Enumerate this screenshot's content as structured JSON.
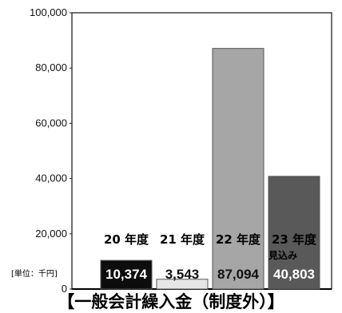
{
  "chart_data": {
    "type": "bar",
    "title": "【一般会計繰入金（制度外）】",
    "unit_note": "[単位：千円]",
    "ylim": [
      0,
      100000
    ],
    "y_ticks": [
      "0",
      "20,000",
      "40,000",
      "60,000",
      "80,000",
      "100,000"
    ],
    "categories": [
      {
        "label": "20 年度",
        "value": 10374,
        "value_label": "10,374",
        "color": "#0d0d0d",
        "text_color": "#ffffff"
      },
      {
        "label": "21 年度",
        "value": 3543,
        "value_label": "3,543",
        "color": "#e6e6e6",
        "text_color": "#111111"
      },
      {
        "label": "22 年度",
        "value": 87094,
        "value_label": "87,094",
        "color": "#a6a6a6",
        "text_color": "#111111"
      },
      {
        "label": "23 年度見込み",
        "value": 40803,
        "value_label": "40,803",
        "color": "#595959",
        "text_color": "#ffffff"
      }
    ]
  }
}
